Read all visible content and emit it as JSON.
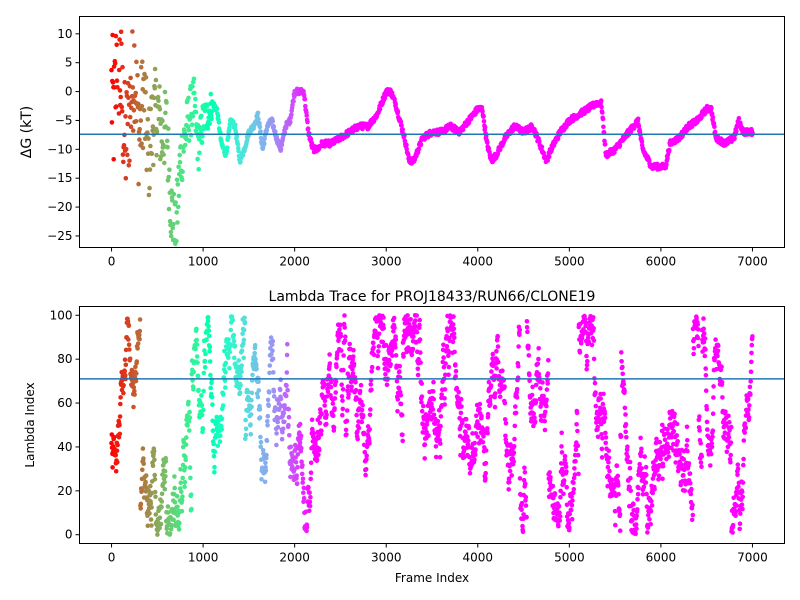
{
  "chart_data": [
    {
      "type": "scatter",
      "title": "",
      "xlabel": "",
      "ylabel": "ΔG (kT)",
      "xlim": [
        -350,
        7350
      ],
      "ylim": [
        -27,
        13
      ],
      "xticks": [
        0,
        1000,
        2000,
        3000,
        4000,
        5000,
        6000,
        7000
      ],
      "yticks": [
        -25,
        -20,
        -15,
        -10,
        -5,
        0,
        5,
        10
      ],
      "hline": -7.4,
      "hline_color": "#1f77b4",
      "colormap": "rainbow (red at early frames to violet at later frames)",
      "series": [
        {
          "x": [
            0,
            30,
            60,
            100,
            150,
            200,
            250,
            300,
            350,
            400,
            450,
            500,
            550,
            600,
            650,
            700,
            750,
            800,
            850,
            900,
            950,
            1000,
            1050,
            1100,
            1150,
            1200,
            1250,
            1300,
            1350,
            1400,
            1450,
            1500,
            1550,
            1600,
            1650,
            1700,
            1750,
            1800,
            1850,
            1900,
            1950,
            2000,
            2050,
            2100,
            2150,
            2200,
            2250,
            2300,
            2400,
            2500,
            2600,
            2700,
            2800,
            2900,
            3000,
            3050,
            3100,
            3200,
            3250,
            3300,
            3400,
            3500,
            3600,
            3700,
            3800,
            3900,
            4000,
            4050,
            4100,
            4150,
            4200,
            4300,
            4400,
            4500,
            4600,
            4700,
            4750,
            4800,
            4900,
            5000,
            5100,
            5200,
            5300,
            5350,
            5400,
            5500,
            5600,
            5700,
            5750,
            5800,
            5900,
            6000,
            6050,
            6100,
            6200,
            6300,
            6400,
            6500,
            6550,
            6600,
            6700,
            6800,
            6850,
            6900,
            7000
          ],
          "y": [
            0,
            -5,
            8,
            2,
            -10,
            -3,
            5,
            -8,
            0,
            -12,
            -5,
            -3,
            -8,
            -6,
            -20,
            -25,
            -12,
            -8,
            -4,
            -2,
            -10,
            -5,
            -4,
            -2,
            -3,
            -9,
            -11,
            -5,
            -6,
            -12,
            -10,
            -7,
            -6,
            -4,
            -10,
            -6,
            -5,
            -8,
            -10,
            -6,
            -5,
            0,
            0,
            0,
            -7,
            -10,
            -10,
            -9,
            -9,
            -8,
            -7,
            -6,
            -6,
            -4,
            0,
            0,
            -2,
            -8,
            -12,
            -12,
            -8,
            -7,
            -7,
            -6,
            -7,
            -5,
            -3,
            -3,
            -9,
            -12,
            -11,
            -8,
            -6,
            -7,
            -6,
            -10,
            -12,
            -10,
            -7,
            -5,
            -4,
            -3,
            -2,
            -2,
            -11,
            -10,
            -8,
            -6,
            -5,
            -10,
            -13,
            -13,
            -13,
            -9,
            -8,
            -6,
            -5,
            -3,
            -3,
            -8,
            -9,
            -8,
            -5,
            -7,
            -7
          ]
        }
      ]
    },
    {
      "type": "scatter",
      "title": "Lambda Trace for PROJ18433/RUN66/CLONE19",
      "xlabel": "Frame Index",
      "ylabel": "Lambda Index",
      "xlim": [
        -350,
        7350
      ],
      "ylim": [
        -4,
        104
      ],
      "xticks": [
        0,
        1000,
        2000,
        3000,
        4000,
        5000,
        6000,
        7000
      ],
      "yticks": [
        0,
        20,
        40,
        60,
        80,
        100
      ],
      "hline": 71,
      "hline_color": "#1f77b4",
      "colormap": "rainbow (red at early frames to violet at later frames)",
      "series": [
        {
          "note_points": "dense per-frame lambda index samples oscillating between 0 and 100 for frames 0-7000",
          "x_range": [
            0,
            7000
          ],
          "y_range": [
            0,
            100
          ]
        }
      ]
    }
  ],
  "axes": {
    "top_ylabel": "ΔG (kT)",
    "bottom_title": "Lambda Trace for PROJ18433/RUN66/CLONE19",
    "bottom_xlabel": "Frame Index",
    "bottom_ylabel": "Lambda Index"
  }
}
